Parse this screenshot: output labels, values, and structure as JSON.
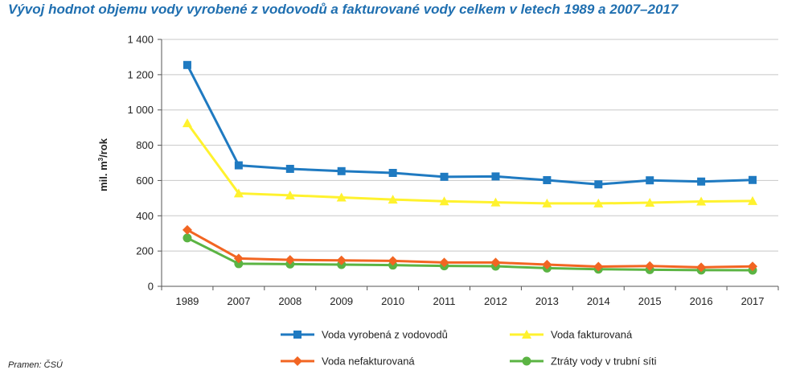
{
  "chart_data": {
    "type": "line",
    "title": "Vývoj hodnot objemu vody vyrobené z vodovodů a fakturované vody celkem v letech 1989 a 2007–2017",
    "ylabel": "mil. m³/rok",
    "xlabel": "",
    "categories": [
      "1989",
      "2007",
      "2008",
      "2009",
      "2010",
      "2011",
      "2012",
      "2013",
      "2014",
      "2015",
      "2016",
      "2017"
    ],
    "ylim": [
      0,
      1400
    ],
    "yticks": [
      0,
      200,
      400,
      600,
      800,
      1000,
      1200,
      1400
    ],
    "ytick_labels": [
      "0",
      "200",
      "400",
      "600",
      "800",
      "1 000",
      "1 200",
      "1 400"
    ],
    "grid": true,
    "legend_position": "bottom",
    "series": [
      {
        "name": "Voda vyrobená z vodovodů",
        "color": "#1f7ac1",
        "marker": "square",
        "values": [
          1255,
          686,
          666,
          653,
          643,
          621,
          623,
          602,
          578,
          601,
          594,
          603
        ]
      },
      {
        "name": "Voda fakturovaná",
        "color": "#fff22e",
        "marker": "triangle",
        "values": [
          925,
          527,
          516,
          504,
          492,
          482,
          476,
          470,
          470,
          474,
          481,
          484
        ]
      },
      {
        "name": "Voda nefakturovaná",
        "color": "#f26522",
        "marker": "diamond",
        "values": [
          320,
          158,
          150,
          147,
          144,
          135,
          135,
          123,
          112,
          115,
          108,
          113
        ]
      },
      {
        "name": "Ztráty vody v trubní síti",
        "color": "#5bb443",
        "marker": "circle",
        "values": [
          274,
          128,
          126,
          123,
          120,
          116,
          114,
          103,
          97,
          94,
          92,
          91
        ]
      }
    ]
  },
  "source": "Pramen: ČSÚ"
}
